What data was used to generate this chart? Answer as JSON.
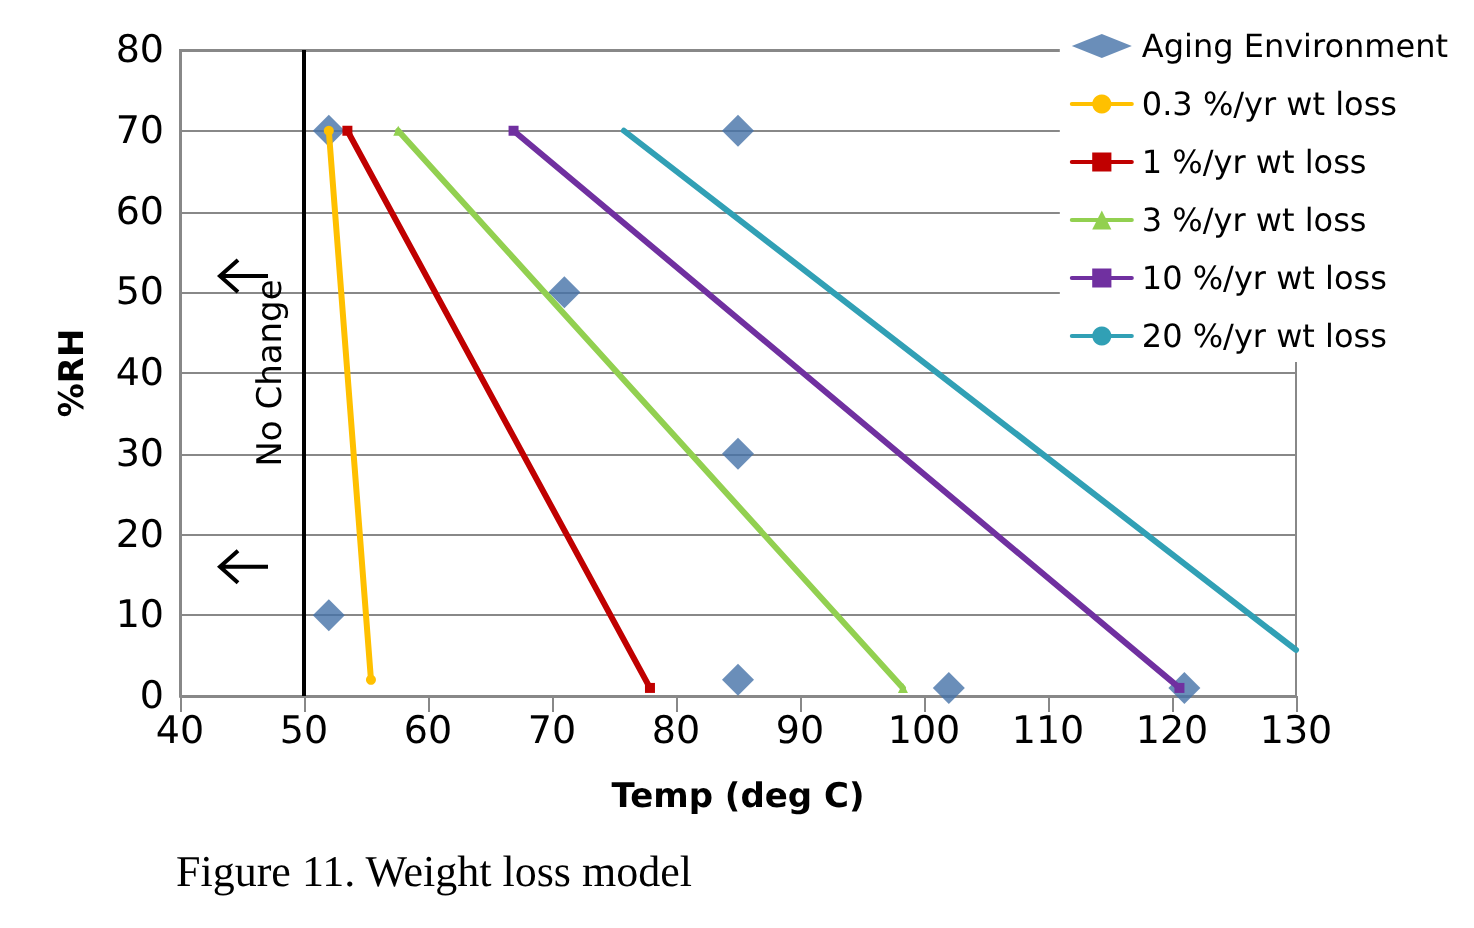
{
  "chart_data": {
    "type": "line",
    "xlabel": "Temp (deg C)",
    "ylabel": "%RH",
    "annotations": [
      "Figure 11. Weight loss model"
    ],
    "xlim": [
      40,
      130
    ],
    "xticks": [
      40,
      50,
      60,
      70,
      80,
      90,
      100,
      110,
      120,
      130
    ],
    "ylim": [
      0,
      80
    ],
    "yticks": [
      0,
      10,
      20,
      30,
      40,
      50,
      60,
      70,
      80
    ],
    "grid": "y",
    "legend": "top right",
    "ref_lines": [
      {
        "axis": "x",
        "value": 50,
        "label": "No Change",
        "color": "#000000"
      }
    ],
    "series": [
      {
        "name": "Aging Environment",
        "type": "scatter",
        "marker": "diamond",
        "color": "#4572a7",
        "x": [
          52,
          52,
          71,
          85,
          85,
          85,
          102,
          121
        ],
        "values": [
          70,
          10,
          50,
          70,
          30,
          2,
          1,
          1
        ]
      },
      {
        "name": "0.3 %/yr wt loss",
        "marker": "circle",
        "color": "#ffc000",
        "x": [
          52,
          55.4
        ],
        "values": [
          70,
          2
        ]
      },
      {
        "name": "1 %/yr wt loss",
        "marker": "square",
        "color": "#c00000",
        "x": [
          53.5,
          77.9
        ],
        "values": [
          70,
          1
        ]
      },
      {
        "name": "3 %/yr wt loss",
        "marker": "triangle",
        "color": "#92d050",
        "x": [
          57.6,
          98.3
        ],
        "values": [
          70,
          1
        ]
      },
      {
        "name": "10 %/yr wt loss",
        "marker": "square",
        "color": "#7030a0",
        "x": [
          66.9,
          120.6
        ],
        "values": [
          70,
          1
        ]
      },
      {
        "name": "20 %/yr wt loss",
        "marker": "none",
        "color": "#31a0b5",
        "x": [
          75.8,
          130
        ],
        "values": [
          70,
          5.7
        ]
      }
    ]
  }
}
